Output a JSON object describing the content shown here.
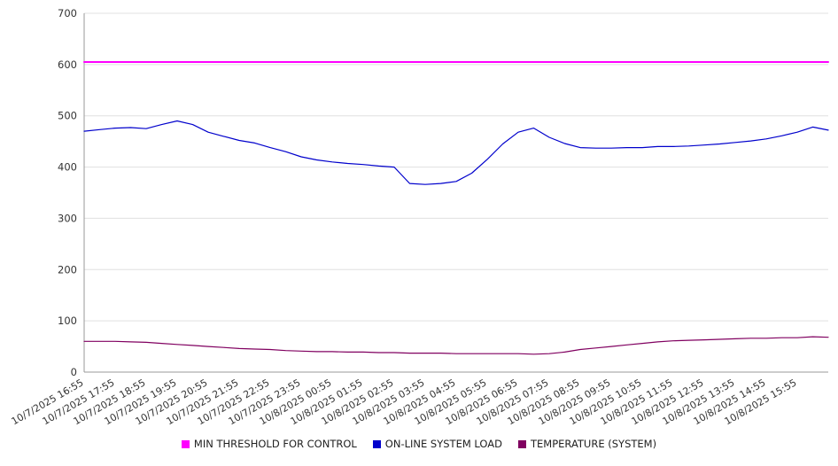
{
  "chart_data": {
    "type": "line",
    "title": "",
    "xlabel": "",
    "ylabel": "",
    "ylim": [
      0,
      700
    ],
    "y_ticks": [
      0,
      100,
      200,
      300,
      400,
      500,
      600,
      700
    ],
    "grid": "horizontal",
    "legend_position": "bottom",
    "x_hours_total": 24,
    "x_tick_labels": [
      "10/7/2025 16:55",
      "10/7/2025 17:55",
      "10/7/2025 18:55",
      "10/7/2025 19:55",
      "10/7/2025 20:55",
      "10/7/2025 21:55",
      "10/7/2025 22:55",
      "10/7/2025 23:55",
      "10/8/2025 00:55",
      "10/8/2025 01:55",
      "10/8/2025 02:55",
      "10/8/2025 03:55",
      "10/8/2025 04:55",
      "10/8/2025 05:55",
      "10/8/2025 06:55",
      "10/8/2025 07:55",
      "10/8/2025 08:55",
      "10/8/2025 09:55",
      "10/8/2025 10:55",
      "10/8/2025 11:55",
      "10/8/2025 12:55",
      "10/8/2025 13:55",
      "10/8/2025 14:55",
      "10/8/2025 15:55"
    ],
    "series": [
      {
        "name": "MIN THRESHOLD FOR CONTROL",
        "color": "#ff00ff",
        "width": 2,
        "x": [
          0,
          24
        ],
        "values": [
          605,
          605
        ]
      },
      {
        "name": "ON-LINE SYSTEM LOAD",
        "color": "#0000cc",
        "width": 1.2,
        "x_start": 0,
        "x_step": 0.5,
        "values": [
          470,
          473,
          476,
          477,
          475,
          483,
          490,
          483,
          468,
          460,
          452,
          447,
          438,
          430,
          420,
          414,
          410,
          407,
          405,
          402,
          400,
          368,
          366,
          368,
          372,
          388,
          415,
          445,
          468,
          476,
          458,
          446,
          438,
          437,
          437,
          438,
          438,
          440,
          440,
          441,
          443,
          445,
          448,
          451,
          455,
          461,
          468,
          478,
          472
        ]
      },
      {
        "name": "TEMPERATURE (SYSTEM)",
        "color": "#800060",
        "width": 1.2,
        "x_start": 0,
        "x_step": 0.5,
        "values": [
          60,
          60,
          60,
          59,
          58,
          56,
          54,
          52,
          50,
          48,
          46,
          45,
          44,
          42,
          41,
          40,
          40,
          39,
          39,
          38,
          38,
          37,
          37,
          37,
          36,
          36,
          36,
          36,
          36,
          35,
          36,
          39,
          44,
          47,
          50,
          53,
          56,
          59,
          61,
          62,
          63,
          64,
          65,
          66,
          66,
          67,
          67,
          69,
          68
        ]
      }
    ]
  },
  "legend": {
    "items": [
      {
        "label": "MIN THRESHOLD FOR CONTROL"
      },
      {
        "label": "ON-LINE SYSTEM LOAD"
      },
      {
        "label": "TEMPERATURE (SYSTEM)"
      }
    ]
  }
}
